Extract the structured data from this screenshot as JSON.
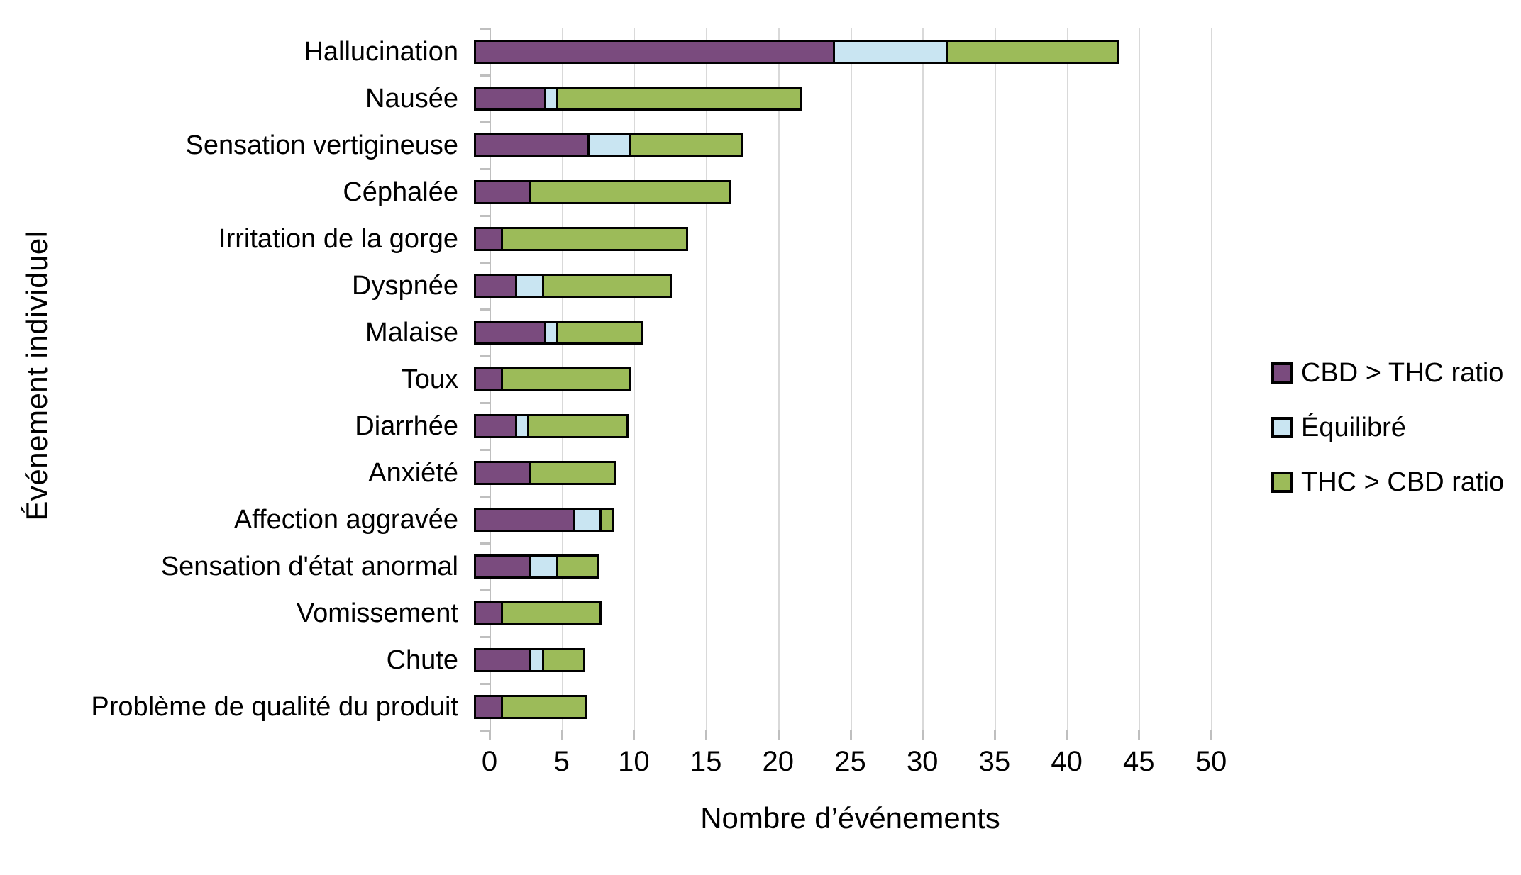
{
  "chart_data": {
    "type": "bar",
    "orientation": "horizontal",
    "stacked": true,
    "title": "",
    "xlabel": "Nombre d’événements",
    "ylabel": "Événement individuel",
    "xlim": [
      0,
      50
    ],
    "xticks": [
      0,
      5,
      10,
      15,
      20,
      25,
      30,
      35,
      40,
      45,
      50
    ],
    "grid": "vertical-gridlines-every-5",
    "legend_position": "right",
    "categories": [
      "Hallucination",
      "Nausée",
      "Sensation vertigineuse",
      "Céphalée",
      "Irritation de la gorge",
      "Dyspnée",
      "Malaise",
      "Toux",
      "Diarrhée",
      "Anxiété",
      "Affection aggravée",
      "Sensation d'état anormal",
      "Vomissement",
      "Chute",
      "Problème de qualité du produit"
    ],
    "series": [
      {
        "name": "CBD > THC ratio",
        "color": "#7A4B7E",
        "values": [
          25,
          5,
          8,
          4,
          2,
          3,
          5,
          2,
          3,
          4,
          7,
          4,
          2,
          4,
          2
        ]
      },
      {
        "name": "Équilibré",
        "color": "#C9E5F2",
        "values": [
          8,
          1,
          3,
          0,
          0,
          2,
          1,
          0,
          1,
          0,
          2,
          2,
          0,
          1,
          0
        ]
      },
      {
        "name": "THC > CBD ratio",
        "color": "#9CBB59",
        "values": [
          12,
          17,
          8,
          14,
          13,
          9,
          6,
          9,
          7,
          6,
          1,
          3,
          7,
          3,
          6
        ]
      }
    ],
    "totals": [
      45,
      23,
      19,
      18,
      15,
      14,
      12,
      11,
      11,
      10,
      10,
      9,
      9,
      8,
      8
    ]
  },
  "colors": {
    "background": "#FFFFFF",
    "text": "#000000",
    "bar_border": "#000000",
    "gridline": "#D9D9D9",
    "axis": "#BFBFBF"
  }
}
